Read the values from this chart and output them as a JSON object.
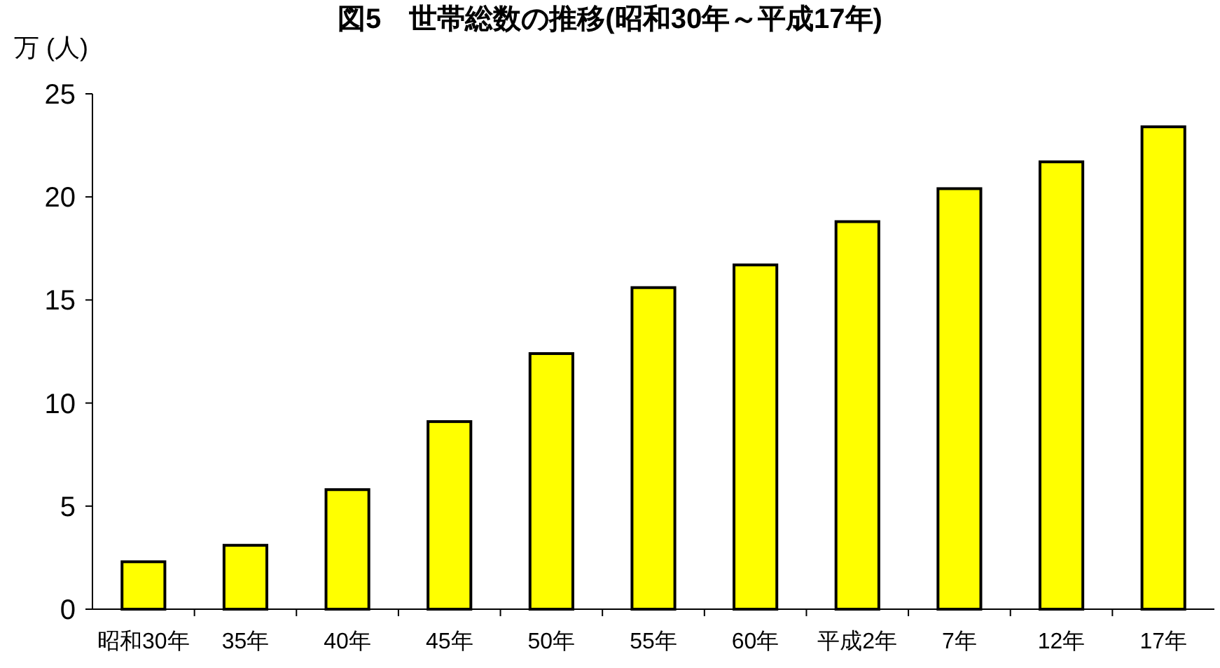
{
  "chart_data": {
    "type": "bar",
    "title": "図5　世帯総数の推移(昭和30年～平成17年)",
    "ylabel": "万 (人)",
    "categories": [
      "昭和30年",
      "35年",
      "40年",
      "45年",
      "50年",
      "55年",
      "60年",
      "平成2年",
      "7年",
      "12年",
      "17年"
    ],
    "values": [
      2.3,
      3.1,
      5.8,
      9.1,
      12.4,
      15.6,
      16.7,
      18.8,
      20.4,
      21.7,
      23.4
    ],
    "color": "#ffff00",
    "ylim": [
      0,
      25
    ],
    "yticks": [
      0,
      5,
      10,
      15,
      20,
      25
    ],
    "grid": false
  }
}
